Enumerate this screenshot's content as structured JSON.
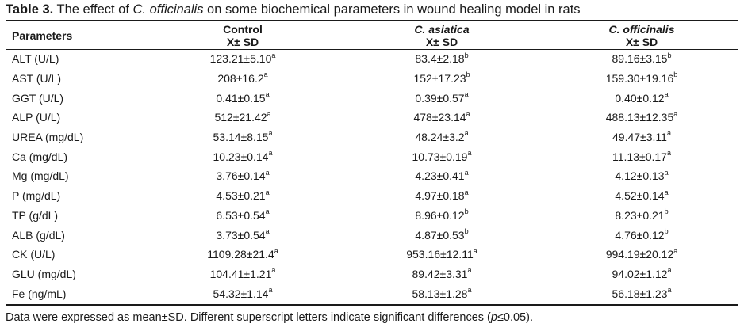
{
  "caption": {
    "label": "Table 3.",
    "text_before": " The effect of ",
    "species": "C. officinalis",
    "text_after": " on some biochemical parameters in wound healing model in rats"
  },
  "header": {
    "param_label": "Parameters",
    "groups": [
      {
        "name": "Control",
        "italic": false,
        "sub": "X± SD"
      },
      {
        "name": "C. asiatica",
        "italic": true,
        "sub": "X± SD"
      },
      {
        "name": "C. officinalis",
        "italic": true,
        "sub": "X± SD"
      }
    ]
  },
  "rows": [
    {
      "param": "ALT (U/L)",
      "cells": [
        {
          "v": "123.21±5.10",
          "s": "a"
        },
        {
          "v": "83.4±2.18",
          "s": "b"
        },
        {
          "v": "89.16±3.15",
          "s": "b"
        }
      ]
    },
    {
      "param": "AST (U/L)",
      "cells": [
        {
          "v": "208±16.2",
          "s": "a"
        },
        {
          "v": "152±17.23",
          "s": "b"
        },
        {
          "v": "159.30±19.16",
          "s": "b"
        }
      ]
    },
    {
      "param": "GGT (U/L)",
      "cells": [
        {
          "v": "0.41±0.15",
          "s": "a"
        },
        {
          "v": "0.39±0.57",
          "s": "a"
        },
        {
          "v": "0.40±0.12",
          "s": "a"
        }
      ]
    },
    {
      "param": "ALP (U/L)",
      "cells": [
        {
          "v": "512±21.42",
          "s": "a"
        },
        {
          "v": "478±23.14",
          "s": "a"
        },
        {
          "v": "488.13±12.35",
          "s": "a"
        }
      ]
    },
    {
      "param": "UREA (mg/dL)",
      "cells": [
        {
          "v": "53.14±8.15",
          "s": "a"
        },
        {
          "v": "48.24±3.2",
          "s": "a"
        },
        {
          "v": "49.47±3.11",
          "s": "a"
        }
      ]
    },
    {
      "param": "Ca (mg/dL)",
      "cells": [
        {
          "v": "10.23±0.14",
          "s": "a"
        },
        {
          "v": "10.73±0.19",
          "s": "a"
        },
        {
          "v": "11.13±0.17",
          "s": "a"
        }
      ]
    },
    {
      "param": "Mg (mg/dL)",
      "cells": [
        {
          "v": "3.76±0.14",
          "s": "a"
        },
        {
          "v": "4.23±0.41",
          "s": "a"
        },
        {
          "v": "4.12±0.13",
          "s": "a"
        }
      ]
    },
    {
      "param": "P (mg/dL)",
      "cells": [
        {
          "v": "4.53±0.21",
          "s": "a"
        },
        {
          "v": "4.97±0.18",
          "s": "a"
        },
        {
          "v": "4.52±0.14",
          "s": "a"
        }
      ]
    },
    {
      "param": "TP (g/dL)",
      "cells": [
        {
          "v": "6.53±0.54",
          "s": "a"
        },
        {
          "v": "8.96±0.12",
          "s": "b"
        },
        {
          "v": "8.23±0.21",
          "s": "b"
        }
      ]
    },
    {
      "param": "ALB (g/dL)",
      "cells": [
        {
          "v": "3.73±0.54",
          "s": "a"
        },
        {
          "v": "4.87±0.53",
          "s": "b"
        },
        {
          "v": "4.76±0.12",
          "s": "b"
        }
      ]
    },
    {
      "param": "CK (U/L)",
      "cells": [
        {
          "v": "1109.28±21.4",
          "s": "a"
        },
        {
          "v": "953.16±12.11",
          "s": "a"
        },
        {
          "v": "994.19±20.12",
          "s": "a"
        }
      ]
    },
    {
      "param": "GLU (mg/dL)",
      "cells": [
        {
          "v": "104.41±1.21",
          "s": "a"
        },
        {
          "v": "89.42±3.31",
          "s": "a"
        },
        {
          "v": "94.02±1.12",
          "s": "a"
        }
      ]
    },
    {
      "param": "Fe (ng/mL)",
      "cells": [
        {
          "v": "54.32±1.14",
          "s": "a"
        },
        {
          "v": "58.13±1.28",
          "s": "a"
        },
        {
          "v": "56.18±1.23",
          "s": "a"
        }
      ]
    }
  ],
  "footnote": {
    "text_before": "Data were expressed as mean±SD. Different superscript letters indicate significant differences (",
    "p_symbol": "p",
    "text_after": "≤0.05)."
  }
}
